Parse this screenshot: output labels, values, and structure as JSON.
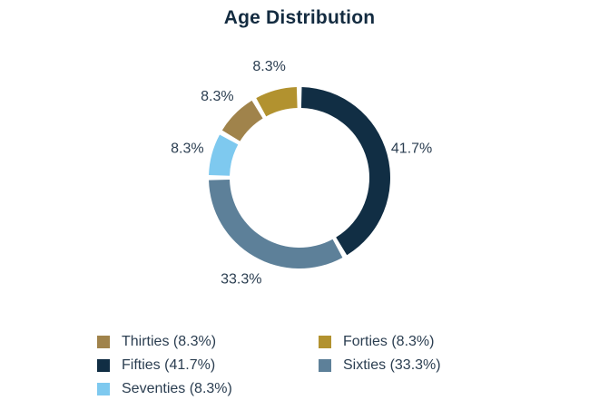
{
  "chart_data": {
    "type": "pie",
    "variant": "donut",
    "title": "Age Distribution",
    "labels": [
      "Thirties",
      "Forties",
      "Fifties",
      "Sixties",
      "Seventies"
    ],
    "values": [
      8.3,
      8.3,
      41.7,
      33.3,
      8.3
    ],
    "slice_labels": [
      "8.3%",
      "8.3%",
      "41.7%",
      "33.3%",
      "8.3%"
    ],
    "colors": [
      "#A0834B",
      "#B2922F",
      "#112E44",
      "#5D8099",
      "#7EC9EF"
    ],
    "start_angle_deg": 300,
    "direction": "clockwise",
    "legend_position": "bottom",
    "legend": [
      {
        "label": "Thirties (8.3%)",
        "color": "#A0834B"
      },
      {
        "label": "Forties (8.3%)",
        "color": "#B2922F"
      },
      {
        "label": "Fifties (41.7%)",
        "color": "#112E44"
      },
      {
        "label": "Sixties (33.3%)",
        "color": "#5D8099"
      },
      {
        "label": "Seventies (8.3%)",
        "color": "#7EC9EF"
      }
    ],
    "text_color": "#2B3E51",
    "title_color": "#132B40"
  }
}
